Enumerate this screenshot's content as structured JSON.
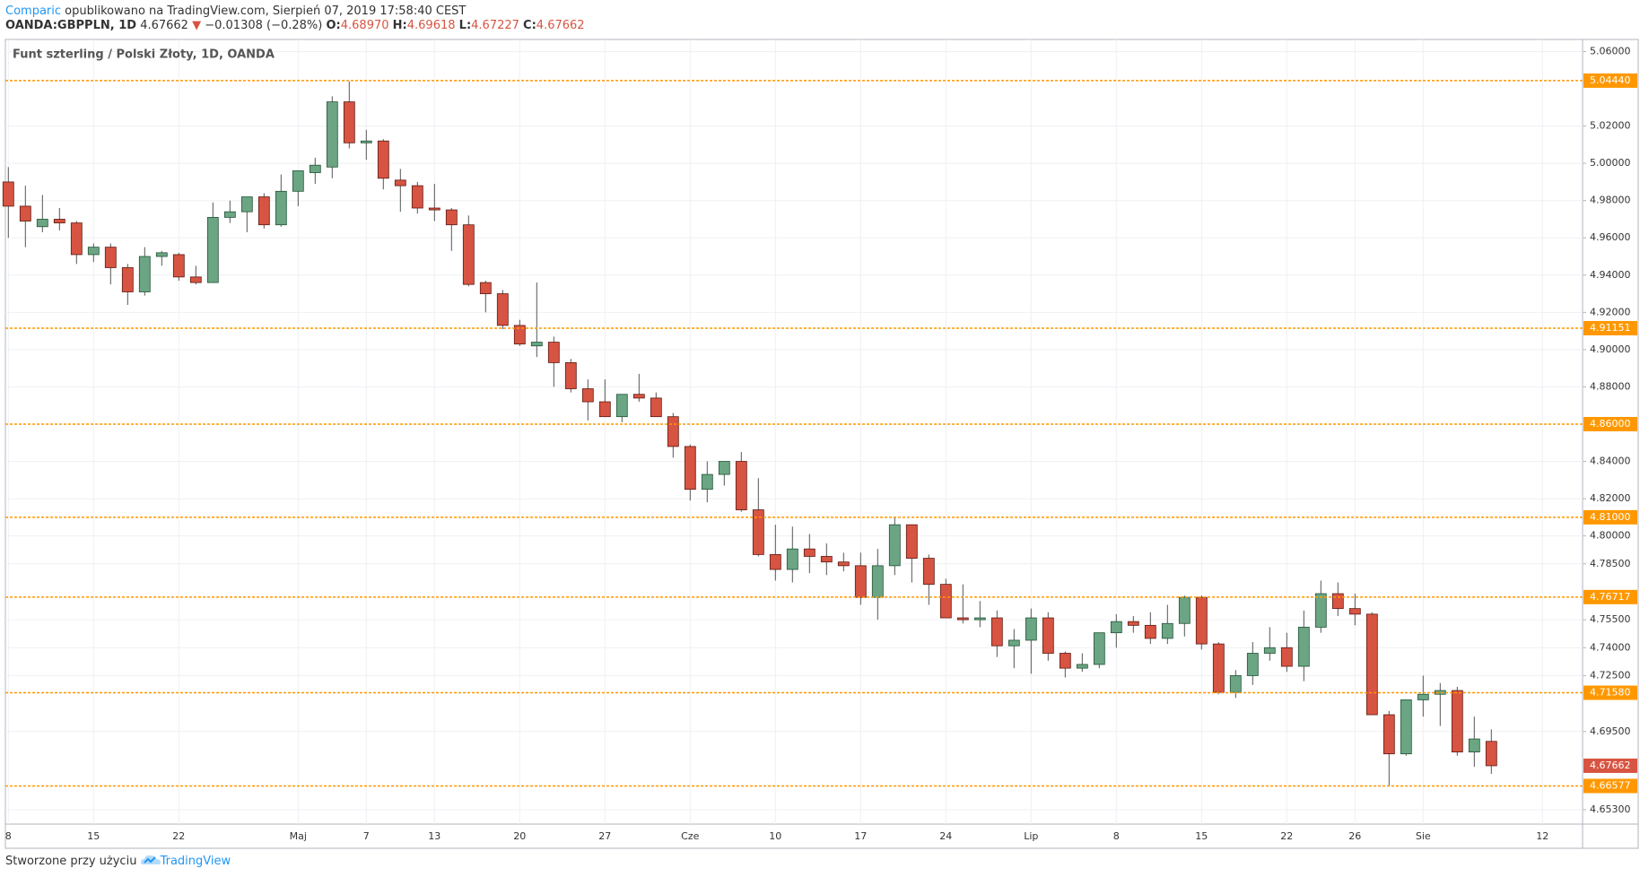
{
  "header": {
    "author": "Comparic",
    "published": "opublikowano na TradingView.com, Sierpień 07, 2019 17:58:40 CEST",
    "symbol": "OANDA:GBPPLN, 1D",
    "last": "4.67662",
    "arrow": "▼",
    "change": "−0.01308 (−0.28%)",
    "ohlc": [
      {
        "label": "O:",
        "value": "4.68970"
      },
      {
        "label": "H:",
        "value": "4.69618"
      },
      {
        "label": "L:",
        "value": "4.67227"
      },
      {
        "label": "C:",
        "value": "4.67662"
      }
    ]
  },
  "chart_data": {
    "type": "candlestick",
    "title": "Funt szterling / Polski Złoty, 1D, OANDA",
    "categories": [
      "8",
      null,
      null,
      null,
      null,
      "15",
      null,
      null,
      null,
      null,
      "22",
      null,
      null,
      null,
      null,
      null,
      null,
      "Maj",
      null,
      null,
      null,
      "7",
      null,
      null,
      null,
      "13",
      null,
      null,
      null,
      null,
      "20",
      null,
      null,
      null,
      null,
      "27",
      null,
      null,
      null,
      null,
      "Cze",
      null,
      null,
      null,
      null,
      "10",
      null,
      null,
      null,
      null,
      "17",
      null,
      null,
      null,
      null,
      "24",
      null,
      null,
      null,
      null,
      "Lip",
      null,
      null,
      null,
      null,
      "8",
      null,
      null,
      null,
      null,
      "15",
      null,
      null,
      null,
      null,
      "22",
      null,
      null,
      null,
      "26",
      null,
      null,
      null,
      "Sie",
      null,
      null,
      null,
      null,
      null,
      null,
      "12"
    ],
    "open": [
      4.99,
      4.977,
      4.966,
      4.97,
      4.968,
      4.951,
      4.955,
      4.944,
      4.931,
      4.95,
      4.951,
      4.939,
      4.936,
      4.971,
      4.974,
      4.982,
      4.967,
      4.985,
      4.995,
      4.998,
      5.033,
      5.011,
      5.012,
      4.991,
      4.988,
      4.976,
      4.975,
      4.967,
      4.936,
      4.93,
      4.913,
      4.902,
      4.904,
      4.893,
      4.879,
      4.872,
      4.864,
      4.876,
      4.874,
      4.864,
      4.848,
      4.825,
      4.833,
      4.84,
      4.814,
      4.79,
      4.782,
      4.793,
      4.789,
      4.786,
      4.784,
      4.767,
      4.784,
      4.806,
      4.788,
      4.774,
      4.756,
      4.755,
      4.756,
      4.741,
      4.744,
      4.756,
      4.737,
      4.729,
      4.731,
      4.748,
      4.754,
      4.752,
      4.745,
      4.753,
      4.767,
      4.742,
      4.716,
      4.725,
      4.737,
      4.74,
      4.73,
      4.751,
      4.769,
      4.761,
      4.758,
      4.704,
      4.683,
      4.712,
      4.715,
      4.717,
      4.684,
      4.6897,
      null,
      null,
      null
    ],
    "high": [
      4.998,
      4.988,
      4.983,
      4.976,
      4.969,
      4.957,
      4.957,
      4.946,
      4.955,
      4.953,
      4.952,
      4.945,
      4.979,
      4.98,
      4.982,
      4.984,
      4.994,
      4.995,
      5.003,
      5.036,
      5.044,
      5.018,
      5.013,
      4.997,
      4.99,
      4.989,
      4.976,
      4.972,
      4.937,
      4.932,
      4.916,
      4.936,
      4.907,
      4.895,
      4.884,
      4.884,
      4.876,
      4.887,
      4.877,
      4.866,
      4.849,
      4.84,
      4.84,
      4.845,
      4.831,
      4.806,
      4.805,
      4.801,
      4.796,
      4.791,
      4.791,
      4.793,
      4.81,
      4.806,
      4.79,
      4.777,
      4.774,
      4.765,
      4.76,
      4.75,
      4.761,
      4.759,
      4.738,
      4.737,
      4.748,
      4.758,
      4.757,
      4.759,
      4.763,
      4.768,
      4.768,
      4.743,
      4.728,
      4.743,
      4.751,
      4.748,
      4.76,
      4.776,
      4.775,
      4.769,
      4.759,
      4.706,
      4.712,
      4.725,
      4.721,
      4.719,
      4.703,
      4.69618,
      null,
      null,
      null
    ],
    "low": [
      4.96,
      4.955,
      4.963,
      4.964,
      4.946,
      4.947,
      4.935,
      4.924,
      4.929,
      4.945,
      4.937,
      4.935,
      4.936,
      4.968,
      4.963,
      4.965,
      4.966,
      4.977,
      4.989,
      4.992,
      5.008,
      5.002,
      4.986,
      4.974,
      4.973,
      4.969,
      4.953,
      4.934,
      4.92,
      4.911,
      4.902,
      4.896,
      4.88,
      4.877,
      4.862,
      4.864,
      4.861,
      4.872,
      4.864,
      4.842,
      4.819,
      4.818,
      4.827,
      4.813,
      4.789,
      4.776,
      4.775,
      4.78,
      4.779,
      4.781,
      4.763,
      4.755,
      4.779,
      4.775,
      4.763,
      4.756,
      4.753,
      4.751,
      4.735,
      4.729,
      4.726,
      4.733,
      4.724,
      4.727,
      4.729,
      4.74,
      4.748,
      4.742,
      4.742,
      4.746,
      4.739,
      4.715,
      4.713,
      4.72,
      4.733,
      4.727,
      4.722,
      4.748,
      4.757,
      4.752,
      4.704,
      4.666,
      4.682,
      4.703,
      4.698,
      4.682,
      4.676,
      4.67227,
      null,
      null,
      null
    ],
    "close": [
      4.977,
      4.969,
      4.97,
      4.968,
      4.951,
      4.955,
      4.944,
      4.931,
      4.95,
      4.952,
      4.939,
      4.936,
      4.971,
      4.974,
      4.982,
      4.967,
      4.985,
      4.996,
      4.999,
      5.033,
      5.011,
      5.012,
      4.992,
      4.988,
      4.976,
      4.975,
      4.967,
      4.935,
      4.93,
      4.913,
      4.903,
      4.904,
      4.893,
      4.879,
      4.872,
      4.864,
      4.876,
      4.874,
      4.864,
      4.848,
      4.825,
      4.833,
      4.84,
      4.814,
      4.79,
      4.782,
      4.793,
      4.789,
      4.786,
      4.784,
      4.767,
      4.784,
      4.806,
      4.788,
      4.774,
      4.756,
      4.755,
      4.756,
      4.741,
      4.744,
      4.756,
      4.737,
      4.729,
      4.731,
      4.748,
      4.754,
      4.752,
      4.745,
      4.753,
      4.767,
      4.742,
      4.716,
      4.725,
      4.737,
      4.74,
      4.73,
      4.751,
      4.769,
      4.761,
      4.758,
      4.704,
      4.683,
      4.712,
      4.715,
      4.717,
      4.684,
      4.691,
      4.67662,
      null,
      null,
      null
    ],
    "up_color": "#6ba583",
    "down_color": "#d75442",
    "level_color": "#ff9800",
    "ylim": [
      4.6453,
      5.0665
    ],
    "yticks": [
      {
        "value": 5.06,
        "label": "5.06000"
      },
      {
        "value": 5.02,
        "label": "5.02000"
      },
      {
        "value": 5.0,
        "label": "5.00000"
      },
      {
        "value": 4.98,
        "label": "4.98000"
      },
      {
        "value": 4.96,
        "label": "4.96000"
      },
      {
        "value": 4.94,
        "label": "4.94000"
      },
      {
        "value": 4.92,
        "label": "4.92000"
      },
      {
        "value": 4.9,
        "label": "4.90000"
      },
      {
        "value": 4.88,
        "label": "4.88000"
      },
      {
        "value": 4.84,
        "label": "4.84000"
      },
      {
        "value": 4.82,
        "label": "4.82000"
      },
      {
        "value": 4.8,
        "label": "4.80000"
      },
      {
        "value": 4.785,
        "label": "4.78500"
      },
      {
        "value": 4.755,
        "label": "4.75500"
      },
      {
        "value": 4.74,
        "label": "4.74000"
      },
      {
        "value": 4.725,
        "label": "4.72500"
      },
      {
        "value": 4.695,
        "label": "4.69500"
      },
      {
        "value": 4.653,
        "label": "4.65300"
      }
    ],
    "grid": true,
    "levels": [
      {
        "value": 5.0444,
        "label": "5.04440"
      },
      {
        "value": 4.91151,
        "label": "4.91151"
      },
      {
        "value": 4.86,
        "label": "4.86000"
      },
      {
        "value": 4.81,
        "label": "4.81000"
      },
      {
        "value": 4.76717,
        "label": "4.76717"
      },
      {
        "value": 4.7158,
        "label": "4.71580"
      },
      {
        "value": 4.66577,
        "label": "4.66577"
      }
    ],
    "last_price": {
      "value": 4.67662,
      "label": "4.67662"
    }
  },
  "footer": {
    "text": "Stworzone przy użyciu",
    "brand": "TradingView"
  }
}
